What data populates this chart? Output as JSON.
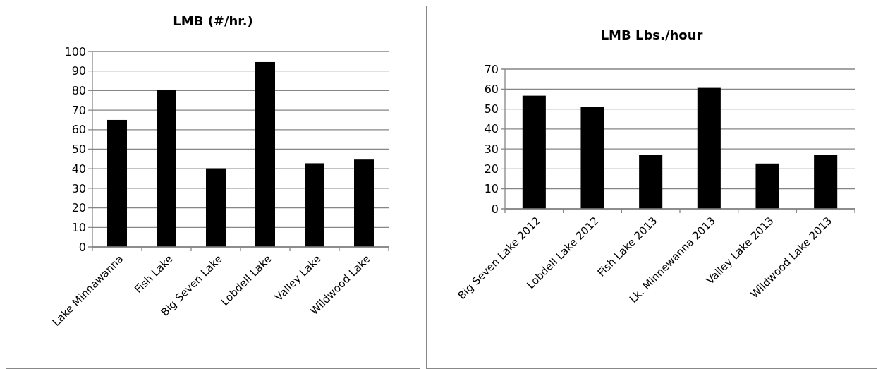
{
  "chart_data": [
    {
      "type": "bar",
      "title": "LMB (#/hr.)",
      "categories": [
        "Lake Minnawanna",
        "Fish Lake",
        "Big Seven Lake",
        "Lobdell Lake",
        "Valley Lake",
        "Wildwood Lake"
      ],
      "values": [
        65,
        80.5,
        40.2,
        94.6,
        42.8,
        44.7
      ],
      "color": "#000000",
      "ylim": [
        0,
        100
      ],
      "yticks": [
        0,
        10,
        20,
        30,
        40,
        50,
        60,
        70,
        80,
        90,
        100
      ],
      "grid": "y"
    },
    {
      "type": "bar",
      "title": "LMB Lbs./hour",
      "categories": [
        "Big Seven Lake 2012",
        "Lobdell Lake 2012",
        "Fish Lake 2013",
        "Lk. Minnewanna 2013",
        "Valley Lake 2013",
        "Wildwood Lake 2013"
      ],
      "values": [
        56.7,
        51.1,
        27,
        60.6,
        22.7,
        26.9
      ],
      "color": "#000000",
      "ylim": [
        0,
        70
      ],
      "yticks": [
        0,
        10,
        20,
        30,
        40,
        50,
        60,
        70
      ],
      "grid": "y"
    }
  ]
}
